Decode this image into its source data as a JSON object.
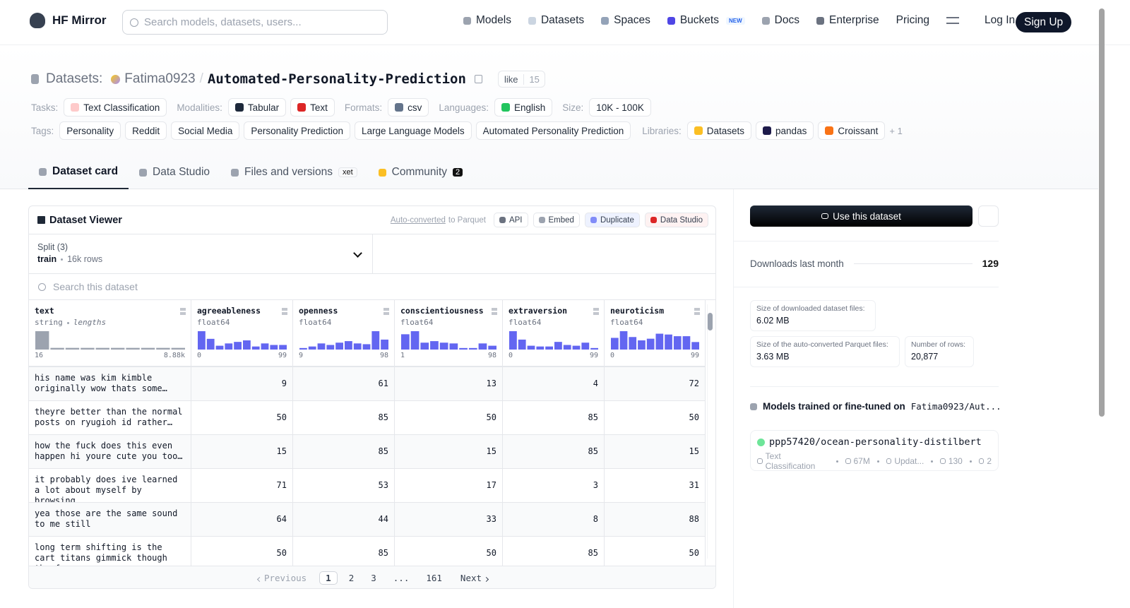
{
  "nav": {
    "brand": "HF Mirror",
    "search_placeholder": "Search models, datasets, users...",
    "links": [
      "Models",
      "Datasets",
      "Spaces",
      "Buckets",
      "Docs",
      "Enterprise",
      "Pricing"
    ],
    "new_badge": "NEW",
    "login": "Log In",
    "signup": "Sign Up"
  },
  "header": {
    "prefix": "Datasets:",
    "owner": "Fatima0923",
    "separator": "/",
    "name": "Automated-Personality-Prediction",
    "like": "like",
    "likes": 15
  },
  "meta": {
    "tasks_label": "Tasks:",
    "tasks": [
      "Text Classification"
    ],
    "modalities_label": "Modalities:",
    "modalities": [
      "Tabular",
      "Text"
    ],
    "formats_label": "Formats:",
    "formats": [
      "csv"
    ],
    "languages_label": "Languages:",
    "languages": [
      "English"
    ],
    "size_label": "Size:",
    "size": [
      "10K - 100K"
    ],
    "tags_label": "Tags:",
    "tags": [
      "Personality",
      "Reddit",
      "Social Media",
      "Personality Prediction",
      "Large Language Models",
      "Automated Personality Prediction"
    ],
    "libraries_label": "Libraries:",
    "libraries": [
      "Datasets",
      "pandas",
      "Croissant"
    ],
    "more": "+ 1"
  },
  "tabs": [
    {
      "label": "Dataset card"
    },
    {
      "label": "Data Studio"
    },
    {
      "label": "Files and versions",
      "badge": "xet"
    },
    {
      "label": "Community",
      "badge": 2
    }
  ],
  "viewer": {
    "title": "Dataset Viewer",
    "auto_converted": "Auto-converted",
    "parquet": "to Parquet",
    "buttons": [
      "API",
      "Embed",
      "Duplicate",
      "Data Studio"
    ],
    "split_label": "Split (3)",
    "split": "train",
    "split_rows": "16k rows",
    "search_placeholder": "Search this dataset",
    "columns": [
      {
        "name": "text",
        "dtype": "string",
        "extra": "lengths",
        "min": 16,
        "max": "8.88k",
        "histogram": [
          22,
          2,
          2,
          2,
          2,
          2,
          2,
          2,
          2,
          2
        ]
      },
      {
        "name": "agreeableness",
        "dtype": "float64",
        "min": 0,
        "max": 99,
        "histogram": [
          24,
          14,
          5,
          8,
          10,
          12,
          4,
          8,
          6,
          6
        ]
      },
      {
        "name": "openness",
        "dtype": "float64",
        "min": 9,
        "max": 98,
        "histogram": [
          2,
          4,
          8,
          6,
          9,
          11,
          8,
          7,
          24,
          13
        ]
      },
      {
        "name": "conscientiousness",
        "dtype": "float64",
        "min": 1,
        "max": 98,
        "histogram": [
          20,
          24,
          9,
          11,
          9,
          8,
          2,
          2,
          8,
          5
        ]
      },
      {
        "name": "extraversion",
        "dtype": "float64",
        "min": 0,
        "max": 99,
        "histogram": [
          24,
          13,
          5,
          4,
          4,
          10,
          6,
          5,
          9,
          2
        ]
      },
      {
        "name": "neuroticism",
        "dtype": "float64",
        "min": 0,
        "max": 99,
        "histogram": [
          14,
          22,
          15,
          11,
          13,
          19,
          18,
          16,
          16,
          9
        ]
      }
    ],
    "rows": [
      [
        "his name was kim kimble originally wow thats some…",
        9,
        61,
        13,
        4,
        72
      ],
      [
        "theyre better than the normal posts on ryugioh id rather…",
        50,
        85,
        50,
        85,
        50
      ],
      [
        "how the fuck does this even happen hi youre cute you too…",
        15,
        85,
        15,
        85,
        15
      ],
      [
        "it probably does ive learned a lot about myself by browsing…",
        71,
        53,
        17,
        3,
        31
      ],
      [
        "yea those are the same sound to me still",
        64,
        44,
        33,
        8,
        88
      ],
      [
        "long term shifting is the cart titans gimmick though the fac…",
        50,
        85,
        50,
        85,
        50
      ]
    ],
    "pagination": {
      "previous": "Previous",
      "pages": [
        1,
        2,
        3
      ],
      "ellipsis": "...",
      "last": 161,
      "next": "Next"
    }
  },
  "sidebar": {
    "use_button": "Use this dataset",
    "downloads_label": "Downloads last month",
    "downloads": 129,
    "files_size_label": "Size of downloaded dataset files:",
    "files_size": "6.02 MB",
    "parquet_size_label": "Size of the auto-converted Parquet files:",
    "parquet_size": "3.63 MB",
    "rows_label": "Number of rows:",
    "rows": "20,877",
    "models_label": "Models trained or fine-tuned on",
    "models_dataset": "Fatima0923/Aut...",
    "model": {
      "name": "ppp57420/ocean-personality-distilbert",
      "task": "Text Classification",
      "params": "67M",
      "updated": "Updat...",
      "downloads": 130,
      "likes": 2
    }
  }
}
